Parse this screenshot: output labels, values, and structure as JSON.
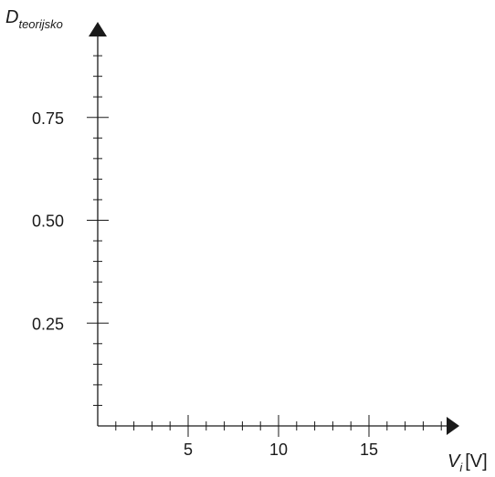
{
  "chart_data": {
    "type": "line",
    "title": "",
    "xlabel": {
      "base": "V",
      "sub": "i",
      "unit": "[V]"
    },
    "ylabel": {
      "base": "D",
      "sub": "teorijsko"
    },
    "xlim": [
      0,
      19.5
    ],
    "ylim": [
      0,
      1.0
    ],
    "x_major_ticks": [
      5,
      10,
      15
    ],
    "x_minor_step": 1,
    "y_major_ticks": [
      0.25,
      0.5,
      0.75
    ],
    "y_minor_step": 0.05,
    "x_tick_labels": [
      "5",
      "10",
      "15"
    ],
    "y_tick_labels": [
      "0.25",
      "0.50",
      "0.75"
    ],
    "series": [],
    "grid": false,
    "legend": "none",
    "colors": {
      "axis": "#1a1a1a",
      "text": "#1a1a1a"
    }
  }
}
